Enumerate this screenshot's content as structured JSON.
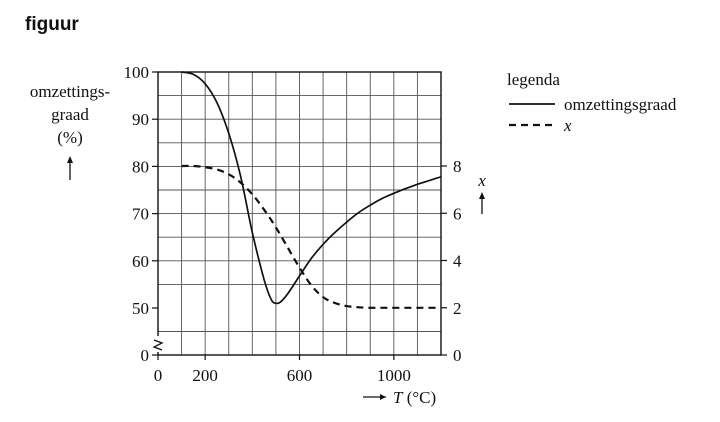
{
  "figure_title": "figuur",
  "chart_data": {
    "type": "line",
    "xlabel": "T (°C)",
    "x_tick_labels": [
      "0",
      "200",
      "600",
      "1000"
    ],
    "xlim": [
      0,
      1200
    ],
    "y_left": {
      "label": [
        "omzettings-",
        "graad",
        "(%)"
      ],
      "ylim": [
        0,
        100
      ],
      "axis_break": true,
      "tick_labels": [
        "0",
        "50",
        "60",
        "70",
        "80",
        "90",
        "100"
      ]
    },
    "y_right": {
      "label": "x",
      "ylim": [
        0,
        8
      ],
      "tick_labels": [
        "0",
        "2",
        "4",
        "6",
        "8"
      ]
    },
    "grid": true,
    "legend": {
      "title": "legenda",
      "position": "top-right",
      "entries": [
        {
          "label": "omzettingsgraad",
          "style": "solid"
        },
        {
          "label": "x",
          "style": "dashed"
        }
      ]
    },
    "series": [
      {
        "name": "omzettingsgraad",
        "axis": "left",
        "style": "solid",
        "x": [
          100,
          150,
          200,
          250,
          300,
          350,
          400,
          450,
          480,
          500,
          520,
          550,
          600,
          650,
          700,
          750,
          800,
          850,
          900,
          950,
          1000,
          1050,
          1100,
          1150,
          1200
        ],
        "y": [
          100,
          99.5,
          97.5,
          93.5,
          87,
          78,
          66,
          56,
          51.8,
          51,
          51.3,
          53,
          56.8,
          60.5,
          63.5,
          66,
          68.2,
          70.2,
          71.8,
          73.2,
          74.3,
          75.3,
          76.2,
          77,
          77.8
        ]
      },
      {
        "name": "x",
        "axis": "right",
        "style": "dashed",
        "x": [
          100,
          150,
          200,
          250,
          300,
          350,
          400,
          450,
          500,
          550,
          600,
          650,
          700,
          750,
          800,
          850,
          900,
          950,
          1000,
          1100,
          1200
        ],
        "y": [
          8,
          8,
          7.95,
          7.85,
          7.65,
          7.3,
          6.8,
          6.15,
          5.4,
          4.55,
          3.7,
          2.95,
          2.45,
          2.2,
          2.07,
          2.02,
          2,
          2,
          2,
          2,
          2
        ]
      }
    ]
  }
}
